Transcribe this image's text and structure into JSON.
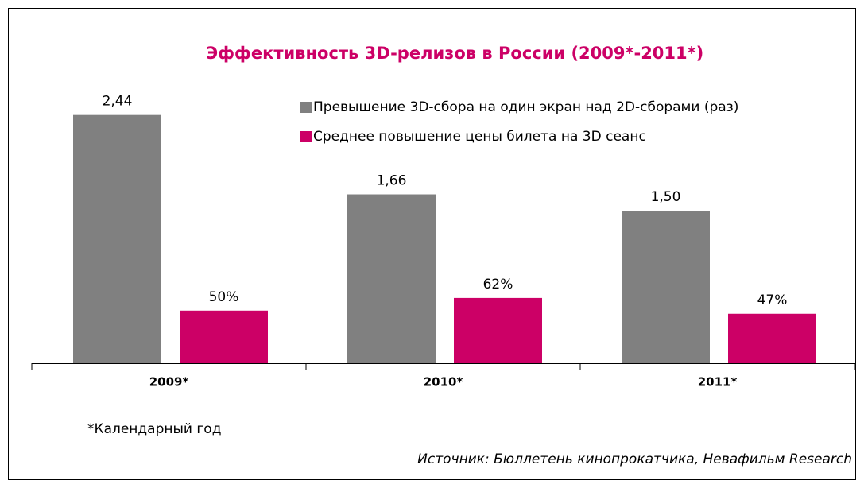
{
  "chart_data": {
    "type": "bar",
    "title": "Эффективность 3D-релизов в России (2009*-2011*)",
    "categories": [
      "2009*",
      "2010*",
      "2011*"
    ],
    "series": [
      {
        "name": "Превышение 3D-сбора на один экран над 2D-сборами (раз)",
        "color": "#808080",
        "values": [
          2.44,
          1.66,
          1.5
        ],
        "value_labels": [
          "2,44",
          "1,66",
          "1,50"
        ]
      },
      {
        "name": "Среднее повышение цены билета на 3D сеанс",
        "color": "#cc0066",
        "values": [
          50,
          62,
          47
        ],
        "value_labels": [
          "50%",
          "62%",
          "47%"
        ],
        "axis": "y2"
      }
    ],
    "ylim": [
      0,
      3
    ],
    "y2lim": [
      0,
      290
    ],
    "legend": "top-right",
    "note": "*Календарный год",
    "source": "Источник: Бюллетень кинопрокатчика, Невафильм Research"
  }
}
